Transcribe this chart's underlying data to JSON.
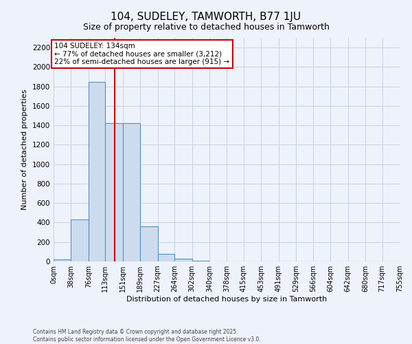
{
  "title": "104, SUDELEY, TAMWORTH, B77 1JU",
  "subtitle": "Size of property relative to detached houses in Tamworth",
  "xlabel": "Distribution of detached houses by size in Tamworth",
  "ylabel": "Number of detached properties",
  "bin_edges": [
    0,
    38,
    76,
    113,
    151,
    189,
    227,
    264,
    302,
    340,
    378,
    415,
    453,
    491,
    529,
    566,
    604,
    642,
    680,
    717,
    755
  ],
  "bin_labels": [
    "0sqm",
    "38sqm",
    "76sqm",
    "113sqm",
    "151sqm",
    "189sqm",
    "227sqm",
    "264sqm",
    "302sqm",
    "340sqm",
    "378sqm",
    "415sqm",
    "453sqm",
    "491sqm",
    "529sqm",
    "566sqm",
    "604sqm",
    "642sqm",
    "680sqm",
    "717sqm",
    "755sqm"
  ],
  "counts": [
    20,
    430,
    1850,
    1420,
    1420,
    360,
    75,
    30,
    5,
    2,
    1,
    0,
    0,
    0,
    0,
    0,
    0,
    0,
    0,
    0
  ],
  "bar_color": "#ccdcee",
  "bar_edge_color": "#5590c4",
  "property_size": 134,
  "red_line_color": "#cc0000",
  "ylim": [
    0,
    2300
  ],
  "yticks": [
    0,
    200,
    400,
    600,
    800,
    1000,
    1200,
    1400,
    1600,
    1800,
    2000,
    2200
  ],
  "annotation_text": "104 SUDELEY: 134sqm\n← 77% of detached houses are smaller (3,212)\n22% of semi-detached houses are larger (915) →",
  "annotation_box_color": "#ffffff",
  "annotation_border_color": "#cc0000",
  "background_color": "#eef2fb",
  "footer_line1": "Contains HM Land Registry data © Crown copyright and database right 2025.",
  "footer_line2": "Contains public sector information licensed under the Open Government Licence v3.0.",
  "grid_color": "#c8d0e0",
  "title_fontsize": 11,
  "subtitle_fontsize": 9
}
